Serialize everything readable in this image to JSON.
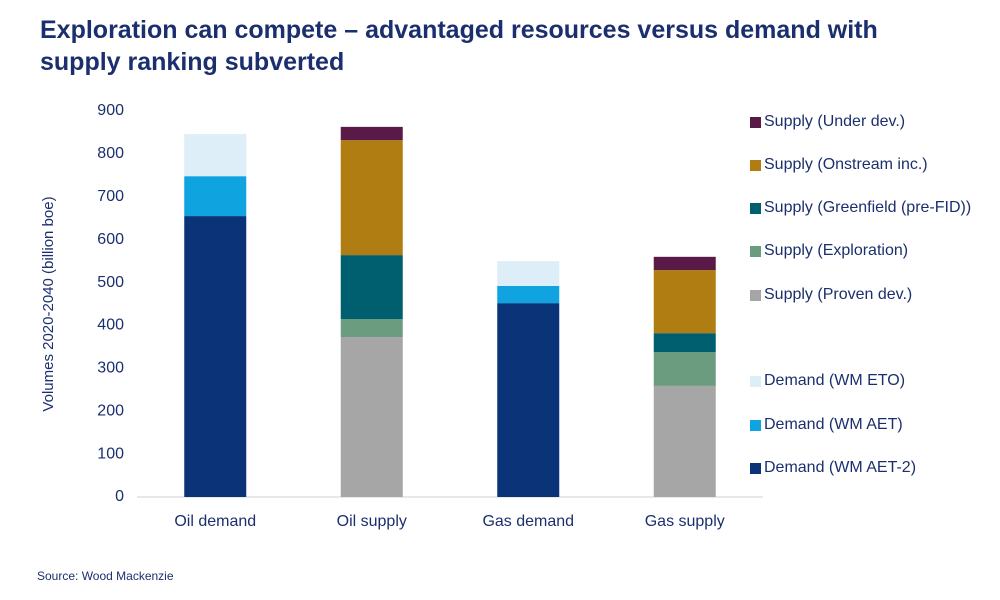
{
  "chart_data": {
    "type": "stacked_bar",
    "title": "Exploration can compete – advantaged resources versus demand with supply ranking subverted",
    "y_label": "Volumes 2020-2040 (billion boe)",
    "source": "Source: Wood Mackenzie",
    "categories": [
      "Oil demand",
      "Oil supply",
      "Gas demand",
      "Gas supply"
    ],
    "ylim": [
      0,
      900
    ],
    "yticks": [
      0,
      100,
      200,
      300,
      400,
      500,
      600,
      700,
      800,
      900
    ],
    "series": [
      {
        "name": "Demand (WM AET-2)",
        "color": "#0b3478",
        "values": [
          655,
          null,
          452,
          null
        ]
      },
      {
        "name": "Demand (WM AET)",
        "color": "#0fa3e0",
        "values": [
          93,
          null,
          40,
          null
        ]
      },
      {
        "name": "Demand (WM ETO)",
        "color": "#ddeef8",
        "values": [
          98,
          null,
          58,
          null
        ]
      },
      {
        "name": "Supply (Proven dev.)",
        "color": "#a6a6a6",
        "values": [
          null,
          373,
          null,
          259
        ]
      },
      {
        "name": "Supply (Exploration)",
        "color": "#6b9c80",
        "values": [
          null,
          42,
          null,
          79
        ]
      },
      {
        "name": "Supply (Greenfield (pre-FID))",
        "color": "#005f6e",
        "values": [
          null,
          149,
          null,
          44
        ]
      },
      {
        "name": "Supply (Onstream inc.)",
        "color": "#b07d12",
        "values": [
          null,
          268,
          null,
          147
        ]
      },
      {
        "name": "Supply (Under dev.)",
        "color": "#5a1a48",
        "values": [
          null,
          31,
          null,
          31
        ]
      }
    ]
  }
}
